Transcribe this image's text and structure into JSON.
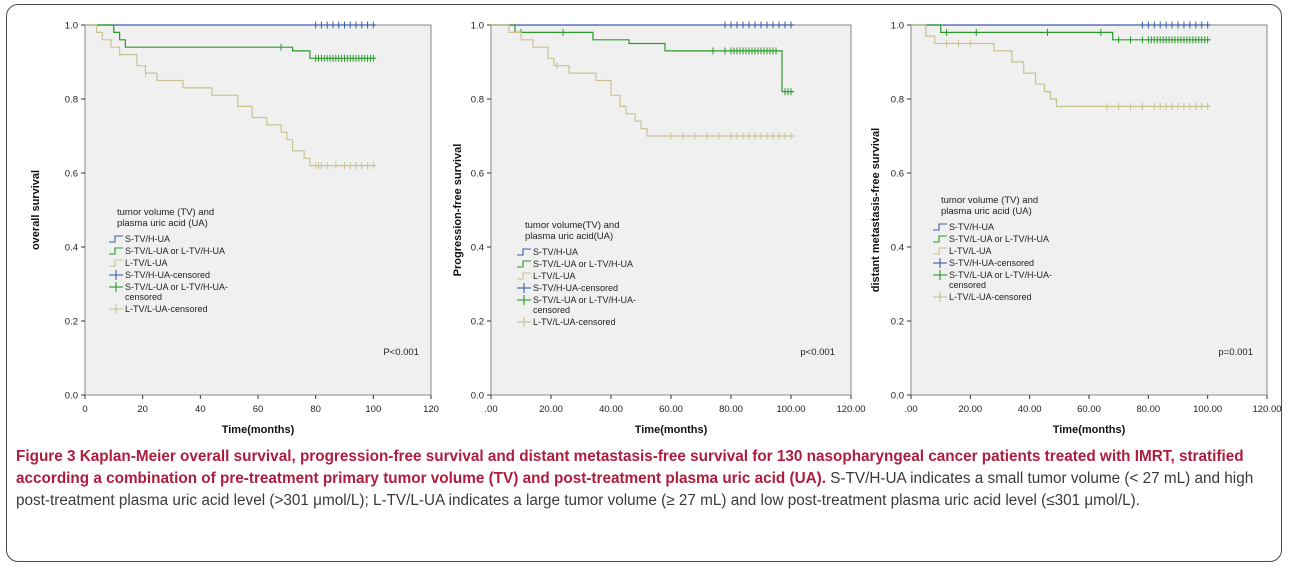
{
  "chart_data": [
    {
      "type": "line",
      "subtype": "kaplan-meier",
      "ylabel": "overall survival",
      "xlabel": "Time(months)",
      "xlim": [
        0,
        120
      ],
      "ylim": [
        0.0,
        1.0
      ],
      "xticks": [
        "0",
        "20",
        "40",
        "60",
        "80",
        "100",
        "120"
      ],
      "yticks": [
        "0.0",
        "0.2",
        "0.4",
        "0.6",
        "0.8",
        "1.0"
      ],
      "pvalue": "P<0.001",
      "legend": {
        "title": "tumor volume (TV) and plasma uric acid (UA)",
        "entries": [
          "S-TV/H-UA",
          "S-TV/L-UA or L-TV/H-UA",
          "L-TV/L-UA",
          "S-TV/H-UA-censored",
          "S-TV/L-UA or L-TV/H-UA-censored",
          "L-TV/L-UA-censored"
        ]
      },
      "series": [
        {
          "name": "S-TV/H-UA",
          "color": "#3c5ea8",
          "steps": [
            [
              0,
              1.0
            ],
            [
              101,
              1.0
            ]
          ],
          "censored": [
            80,
            82,
            84,
            86,
            88,
            90,
            92,
            94,
            96,
            98,
            100
          ]
        },
        {
          "name": "S-TV/L-UA or L-TV/H-UA",
          "color": "#2a9a2a",
          "steps": [
            [
              0,
              1.0
            ],
            [
              10,
              0.98
            ],
            [
              12,
              0.96
            ],
            [
              14,
              0.94
            ],
            [
              22,
              0.94
            ],
            [
              70,
              0.94
            ],
            [
              72,
              0.93
            ],
            [
              78,
              0.91
            ],
            [
              101,
              0.91
            ]
          ],
          "censored": [
            68,
            80,
            81,
            82,
            83,
            84,
            85,
            86,
            87,
            88,
            89,
            90,
            91,
            92,
            93,
            94,
            95,
            96,
            97,
            98,
            99,
            100
          ]
        },
        {
          "name": "L-TV/L-UA",
          "color": "#c8c490",
          "steps": [
            [
              0,
              1.0
            ],
            [
              4,
              0.98
            ],
            [
              6,
              0.96
            ],
            [
              9,
              0.94
            ],
            [
              12,
              0.92
            ],
            [
              18,
              0.89
            ],
            [
              21,
              0.87
            ],
            [
              25,
              0.85
            ],
            [
              34,
              0.83
            ],
            [
              44,
              0.81
            ],
            [
              53,
              0.78
            ],
            [
              58,
              0.75
            ],
            [
              63,
              0.73
            ],
            [
              68,
              0.71
            ],
            [
              70,
              0.69
            ],
            [
              72,
              0.66
            ],
            [
              76,
              0.64
            ],
            [
              78,
              0.62
            ],
            [
              101,
              0.62
            ]
          ],
          "censored": [
            21,
            80,
            81,
            82,
            84,
            87,
            90,
            92,
            94,
            96,
            98,
            100
          ]
        }
      ]
    },
    {
      "type": "line",
      "subtype": "kaplan-meier",
      "ylabel": "Progression-free survival",
      "xlabel": "Time(months)",
      "xlim": [
        0,
        120
      ],
      "ylim": [
        0.0,
        1.0
      ],
      "xticks": [
        ".00",
        "20.00",
        "40.00",
        "60.00",
        "80.00",
        "100.00",
        "120.00"
      ],
      "yticks": [
        "0.0",
        "0.2",
        "0.4",
        "0.6",
        "0.8",
        "1.0"
      ],
      "pvalue": "p<0.001",
      "legend": {
        "title": "tumor volume(TV) and plasma uric acid(UA)",
        "entries": [
          "S-TV/H-UA",
          "S-TV/L-UA or L-TV/H-UA",
          "L-TV/L-UA",
          "S-TV/H-UA-censored",
          "S-TV/L-UA or L-TV/H-UA-censored",
          "L-TV/L-UA-censored"
        ]
      },
      "series": [
        {
          "name": "S-TV/H-UA",
          "color": "#3c5ea8",
          "steps": [
            [
              0,
              1.0
            ],
            [
              101,
              1.0
            ]
          ],
          "censored": [
            78,
            80,
            82,
            84,
            86,
            88,
            90,
            92,
            94,
            96,
            98,
            100
          ]
        },
        {
          "name": "S-TV/L-UA or L-TV/H-UA",
          "color": "#2a9a2a",
          "steps": [
            [
              0,
              1.0
            ],
            [
              8,
              0.98
            ],
            [
              30,
              0.98
            ],
            [
              34,
              0.96
            ],
            [
              46,
              0.95
            ],
            [
              58,
              0.93
            ],
            [
              96,
              0.93
            ],
            [
              97,
              0.82
            ],
            [
              101,
              0.82
            ]
          ],
          "censored": [
            10,
            24,
            74,
            78,
            80,
            81,
            82,
            83,
            84,
            85,
            86,
            87,
            88,
            89,
            90,
            91,
            92,
            93,
            94,
            95,
            98,
            99,
            100
          ]
        },
        {
          "name": "L-TV/L-UA",
          "color": "#c8c490",
          "steps": [
            [
              0,
              1.0
            ],
            [
              6,
              0.98
            ],
            [
              10,
              0.96
            ],
            [
              14,
              0.94
            ],
            [
              19,
              0.91
            ],
            [
              21,
              0.89
            ],
            [
              26,
              0.87
            ],
            [
              35,
              0.85
            ],
            [
              40,
              0.81
            ],
            [
              43,
              0.78
            ],
            [
              45,
              0.76
            ],
            [
              48,
              0.74
            ],
            [
              50,
              0.72
            ],
            [
              52,
              0.7
            ],
            [
              101,
              0.7
            ]
          ],
          "censored": [
            22,
            60,
            64,
            68,
            72,
            76,
            80,
            82,
            84,
            86,
            88,
            90,
            92,
            94,
            96,
            98,
            100
          ]
        }
      ]
    },
    {
      "type": "line",
      "subtype": "kaplan-meier",
      "ylabel": "distant metastasis-free survival",
      "xlabel": "Time(months)",
      "xlim": [
        0,
        120
      ],
      "ylim": [
        0.0,
        1.0
      ],
      "xticks": [
        ".00",
        "20.00",
        "40.00",
        "60.00",
        "80.00",
        "100.00",
        "120.00"
      ],
      "yticks": [
        "0.0",
        "0.2",
        "0.4",
        "0.6",
        "0.8",
        "1.0"
      ],
      "pvalue": "p=0.001",
      "legend": {
        "title": "tumor volume (TV) and plasma uric acid (UA)",
        "entries": [
          "S-TV/H-UA",
          "S-TV/L-UA or L-TV/H-UA",
          "L-TV/L-UA",
          "S-TV/H-UA-censored",
          "S-TV/L-UA or L-TV/H-UA-censored",
          "L-TV/L-UA-censored"
        ]
      },
      "series": [
        {
          "name": "S-TV/H-UA",
          "color": "#3c5ea8",
          "steps": [
            [
              0,
              1.0
            ],
            [
              101,
              1.0
            ]
          ],
          "censored": [
            78,
            80,
            82,
            84,
            86,
            88,
            90,
            92,
            94,
            96,
            98,
            100
          ]
        },
        {
          "name": "S-TV/L-UA or L-TV/H-UA",
          "color": "#2a9a2a",
          "steps": [
            [
              0,
              1.0
            ],
            [
              10,
              0.98
            ],
            [
              66,
              0.98
            ],
            [
              68,
              0.96
            ],
            [
              101,
              0.96
            ]
          ],
          "censored": [
            12,
            22,
            46,
            64,
            70,
            74,
            78,
            80,
            81,
            82,
            83,
            84,
            85,
            86,
            87,
            88,
            89,
            90,
            91,
            92,
            93,
            94,
            95,
            96,
            97,
            98,
            99,
            100
          ]
        },
        {
          "name": "L-TV/L-UA",
          "color": "#c8c490",
          "steps": [
            [
              0,
              1.0
            ],
            [
              5,
              0.97
            ],
            [
              8,
              0.95
            ],
            [
              22,
              0.95
            ],
            [
              28,
              0.93
            ],
            [
              34,
              0.9
            ],
            [
              38,
              0.87
            ],
            [
              42,
              0.84
            ],
            [
              45,
              0.82
            ],
            [
              47,
              0.8
            ],
            [
              49,
              0.78
            ],
            [
              101,
              0.78
            ]
          ],
          "censored": [
            12,
            16,
            20,
            66,
            70,
            74,
            78,
            82,
            84,
            86,
            88,
            90,
            92,
            94,
            96,
            98,
            100
          ]
        }
      ]
    }
  ],
  "caption": {
    "lead": "Figure 3 Kaplan-Meier overall survival, progression-free survival and distant metastasis-free survival for 130 nasopharyngeal cancer patients treated with IMRT, stratified according a combination of pre-treatment primary tumor volume (TV) and post-treatment plasma uric acid (UA).",
    "body": " S-TV/H-UA indicates a small tumor volume (< 27 mL) and high post-treatment plasma uric acid level (>301 μmol/L); L-TV/L-UA indicates a large tumor volume (≥ 27 mL) and low post-treatment plasma uric acid level (≤301 μmol/L)."
  }
}
